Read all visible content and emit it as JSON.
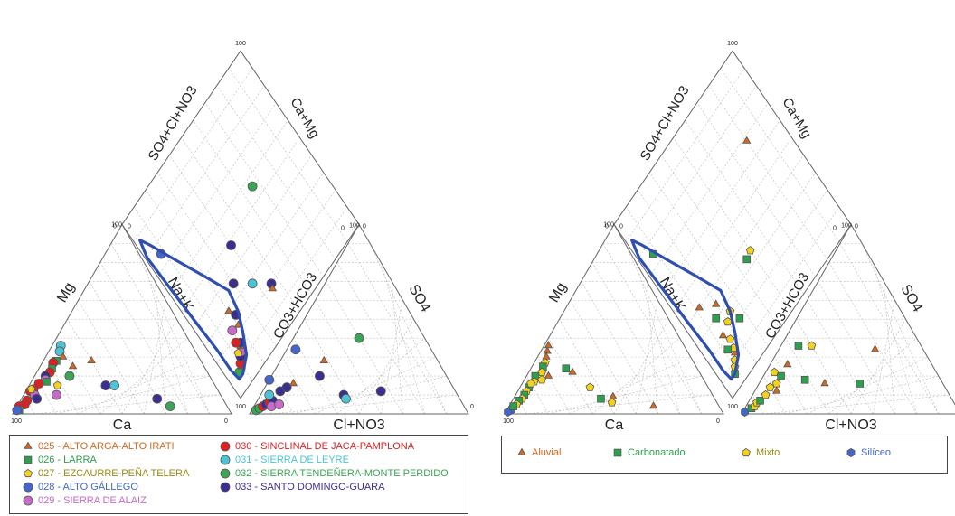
{
  "colors": {
    "025": "#d2691e",
    "026": "#2e9e4f",
    "027": "#f2d21c",
    "028": "#4466cc",
    "029": "#c86ac8",
    "030": "#e02020",
    "031": "#4dc3d6",
    "032": "#3aa655",
    "033": "#3a2f8f",
    "Aluvial": "#d2691e",
    "Carbonatado": "#2e9e4f",
    "Mixto": "#f2d21c",
    "Siliceo": "#4466cc",
    "envelope": "#2f4fb0"
  },
  "chart_data": [
    {
      "type": "scatter",
      "subtype": "piper-diagram",
      "ternary_labels": {
        "left": {
          "apex_top": "Mg",
          "right_side": "Na+K",
          "bottom": "Ca"
        },
        "right": {
          "left_side": "CO3+HCO3",
          "apex_top": "SO4",
          "bottom": "Cl+NO3"
        },
        "diamond": {
          "upper_left": "SO4+Cl+NO3",
          "upper_right": "Ca+Mg"
        }
      },
      "tick_labels": [
        "100",
        "0"
      ],
      "legend": [
        {
          "key": "025",
          "label": "025 - ALTO ARGA-ALTO IRATI",
          "marker": "triangle"
        },
        {
          "key": "026",
          "label": "026 - LARRA",
          "marker": "square"
        },
        {
          "key": "027",
          "label": "027 - EZCAURRE-PEÑA TELERA",
          "marker": "pentagon"
        },
        {
          "key": "028",
          "label": "028 - ALTO GÁLLEGO",
          "marker": "circle"
        },
        {
          "key": "029",
          "label": "029 - SIERRA DE ALAIZ",
          "marker": "circle"
        },
        {
          "key": "030",
          "label": "030 - SINCLINAL DE JACA-PAMPLONA",
          "marker": "circle"
        },
        {
          "key": "031",
          "label": "031 - SIERRA DE LEYRE",
          "marker": "circle"
        },
        {
          "key": "032",
          "label": "032 - SIERRA TENDEÑERA-MONTE PERDIDO",
          "marker": "circle"
        },
        {
          "key": "033",
          "label": "033 - SANTO DOMINGO-GUARA",
          "marker": "circle"
        }
      ],
      "cation_points": [
        {
          "s": "031",
          "ca": 60,
          "mg": 36
        },
        {
          "s": "031",
          "ca": 62,
          "mg": 33
        },
        {
          "s": "025",
          "ca": 62,
          "mg": 30
        },
        {
          "s": "026",
          "ca": 66,
          "mg": 28
        },
        {
          "s": "030",
          "ca": 68,
          "mg": 27
        },
        {
          "s": "026",
          "ca": 70,
          "mg": 24
        },
        {
          "s": "030",
          "ca": 72,
          "mg": 22
        },
        {
          "s": "033",
          "ca": 75,
          "mg": 20
        },
        {
          "s": "029",
          "ca": 76,
          "mg": 18
        },
        {
          "s": "026",
          "ca": 76,
          "mg": 17
        },
        {
          "s": "030",
          "ca": 80,
          "mg": 16
        },
        {
          "s": "030",
          "ca": 84,
          "mg": 13
        },
        {
          "s": "030",
          "ca": 86,
          "mg": 12
        },
        {
          "s": "029",
          "ca": 85,
          "mg": 10
        },
        {
          "s": "027",
          "ca": 85,
          "mg": 13
        },
        {
          "s": "030",
          "ca": 90,
          "mg": 7
        },
        {
          "s": "030",
          "ca": 92,
          "mg": 5
        },
        {
          "s": "030",
          "ca": 95,
          "mg": 4
        },
        {
          "s": "026",
          "ca": 96,
          "mg": 2
        },
        {
          "s": "028",
          "ca": 97,
          "mg": 2
        },
        {
          "s": "033",
          "ca": 85,
          "mg": 8
        },
        {
          "s": "029",
          "ca": 75,
          "mg": 10
        },
        {
          "s": "025",
          "ca": 60,
          "mg": 25
        },
        {
          "s": "025",
          "ca": 50,
          "mg": 28
        },
        {
          "s": "033",
          "ca": 50,
          "mg": 15
        },
        {
          "s": "031",
          "ca": 46,
          "mg": 15
        },
        {
          "s": "033",
          "ca": 30,
          "mg": 8
        },
        {
          "s": "032",
          "ca": 26,
          "mg": 4
        },
        {
          "s": "027",
          "ca": 72,
          "mg": 15
        },
        {
          "s": "032",
          "ca": 64,
          "mg": 20
        }
      ],
      "anion_points": [
        {
          "s": "032",
          "hco3": 96,
          "so4": 2
        },
        {
          "s": "032",
          "hco3": 94,
          "so4": 3
        },
        {
          "s": "030",
          "hco3": 92,
          "so4": 4
        },
        {
          "s": "033",
          "hco3": 90,
          "so4": 5
        },
        {
          "s": "030",
          "hco3": 88,
          "so4": 6
        },
        {
          "s": "033",
          "hco3": 86,
          "so4": 7
        },
        {
          "s": "029",
          "hco3": 88,
          "so4": 4
        },
        {
          "s": "029",
          "hco3": 84,
          "so4": 5
        },
        {
          "s": "031",
          "hco3": 86,
          "so4": 10
        },
        {
          "s": "033",
          "hco3": 80,
          "so4": 12
        },
        {
          "s": "033",
          "hco3": 76,
          "so4": 14
        },
        {
          "s": "025",
          "hco3": 72,
          "so4": 16
        },
        {
          "s": "028",
          "hco3": 62,
          "so4": 34
        },
        {
          "s": "033",
          "hco3": 58,
          "so4": 20
        },
        {
          "s": "033",
          "hco3": 52,
          "so4": 10
        },
        {
          "s": "025",
          "hco3": 52,
          "so4": 28
        },
        {
          "s": "031",
          "hco3": 52,
          "so4": 8
        },
        {
          "s": "032",
          "hco3": 30,
          "so4": 40
        },
        {
          "s": "033",
          "hco3": 34,
          "so4": 12
        },
        {
          "s": "028",
          "hco3": 82,
          "so4": 18
        }
      ],
      "diamond_points": [
        {
          "s": "032",
          "anion": 8,
          "cation": 93
        },
        {
          "s": "026",
          "anion": 9,
          "cation": 90
        },
        {
          "s": "030",
          "anion": 10,
          "cation": 90
        },
        {
          "s": "033",
          "anion": 12,
          "cation": 88
        },
        {
          "s": "029",
          "anion": 13,
          "cation": 86
        },
        {
          "s": "025",
          "anion": 15,
          "cation": 85
        },
        {
          "s": "027",
          "anion": 14,
          "cation": 88
        },
        {
          "s": "033",
          "anion": 16,
          "cation": 84
        },
        {
          "s": "030",
          "anion": 18,
          "cation": 86
        },
        {
          "s": "025",
          "anion": 22,
          "cation": 80
        },
        {
          "s": "033",
          "anion": 26,
          "cation": 78
        },
        {
          "s": "025",
          "anion": 30,
          "cation": 80
        },
        {
          "s": "029",
          "anion": 23,
          "cation": 84
        },
        {
          "s": "033",
          "anion": 36,
          "cation": 70
        },
        {
          "s": "033",
          "anion": 48,
          "cation": 60
        },
        {
          "s": "028",
          "anion": 75,
          "cation": 92
        },
        {
          "s": "032",
          "anion": 56,
          "cation": 34
        },
        {
          "s": "033",
          "anion": 20,
          "cation": 54
        },
        {
          "s": "025",
          "anion": 18,
          "cation": 55
        },
        {
          "s": "031",
          "anion": 28,
          "cation": 62
        }
      ]
    },
    {
      "type": "scatter",
      "subtype": "piper-diagram",
      "ternary_labels": {
        "left": {
          "apex_top": "Mg",
          "right_side": "Na+K",
          "bottom": "Ca"
        },
        "right": {
          "left_side": "CO3+HCO3",
          "apex_top": "SO4",
          "bottom": "Cl+NO3"
        },
        "diamond": {
          "upper_left": "SO4+Cl+NO3",
          "upper_right": "Ca+Mg"
        }
      },
      "tick_labels": [
        "100",
        "0"
      ],
      "legend": [
        {
          "key": "Aluvial",
          "label": "Aluvial",
          "marker": "triangle"
        },
        {
          "key": "Carbonatado",
          "label": "Carbonatado",
          "marker": "square"
        },
        {
          "key": "Mixto",
          "label": "Mixto",
          "marker": "pentagon"
        },
        {
          "key": "Siliceo",
          "label": "Silíceo",
          "marker": "hexagon"
        }
      ],
      "cation_points": [
        {
          "s": "Aluvial",
          "ca": 62,
          "mg": 36
        },
        {
          "s": "Aluvial",
          "ca": 64,
          "mg": 33
        },
        {
          "s": "Aluvial",
          "ca": 66,
          "mg": 30
        },
        {
          "s": "Mixto",
          "ca": 68,
          "mg": 27
        },
        {
          "s": "Carbonatado",
          "ca": 70,
          "mg": 25
        },
        {
          "s": "Mixto",
          "ca": 72,
          "mg": 22
        },
        {
          "s": "Carbonatado",
          "ca": 76,
          "mg": 20
        },
        {
          "s": "Mixto",
          "ca": 78,
          "mg": 17
        },
        {
          "s": "Carbonatado",
          "ca": 82,
          "mg": 14
        },
        {
          "s": "Mixto",
          "ca": 84,
          "mg": 12
        },
        {
          "s": "Carbonatado",
          "ca": 86,
          "mg": 10
        },
        {
          "s": "Mixto",
          "ca": 88,
          "mg": 8
        },
        {
          "s": "Carbonatado",
          "ca": 90,
          "mg": 7
        },
        {
          "s": "Mixto",
          "ca": 92,
          "mg": 5
        },
        {
          "s": "Siliceo",
          "ca": 96,
          "mg": 2
        },
        {
          "s": "Siliceo",
          "ca": 98,
          "mg": 1
        },
        {
          "s": "Aluvial",
          "ca": 70,
          "mg": 20
        },
        {
          "s": "Mixto",
          "ca": 74,
          "mg": 18
        },
        {
          "s": "Carbonatado",
          "ca": 60,
          "mg": 24
        },
        {
          "s": "Aluvial",
          "ca": 58,
          "mg": 22
        },
        {
          "s": "Mixto",
          "ca": 54,
          "mg": 14
        },
        {
          "s": "Aluvial",
          "ca": 46,
          "mg": 9
        },
        {
          "s": "Carbonatado",
          "ca": 52,
          "mg": 8
        },
        {
          "s": "Mixto",
          "ca": 48,
          "mg": 6
        },
        {
          "s": "Aluvial",
          "ca": 30,
          "mg": 4
        },
        {
          "s": "Mixto",
          "ca": 80,
          "mg": 16
        },
        {
          "s": "Carbonatado",
          "ca": 94,
          "mg": 4
        }
      ],
      "anion_points": [
        {
          "s": "Siliceo",
          "hco3": 98,
          "so4": 1
        },
        {
          "s": "Carbonatado",
          "hco3": 94,
          "so4": 3
        },
        {
          "s": "Mixto",
          "hco3": 92,
          "so4": 4
        },
        {
          "s": "Mixto",
          "hco3": 90,
          "so4": 6
        },
        {
          "s": "Carbonatado",
          "hco3": 88,
          "so4": 7
        },
        {
          "s": "Mixto",
          "hco3": 84,
          "so4": 10
        },
        {
          "s": "Mixto",
          "hco3": 80,
          "so4": 14
        },
        {
          "s": "Aluvial",
          "hco3": 78,
          "so4": 12
        },
        {
          "s": "Mixto",
          "hco3": 76,
          "so4": 16
        },
        {
          "s": "Carbonatado",
          "hco3": 72,
          "so4": 20
        },
        {
          "s": "Aluvial",
          "hco3": 66,
          "so4": 26
        },
        {
          "s": "Carbonatado",
          "hco3": 56,
          "so4": 36
        },
        {
          "s": "Mixto",
          "hco3": 50,
          "so4": 36
        },
        {
          "s": "Carbonatado",
          "hco3": 62,
          "so4": 18
        },
        {
          "s": "Aluvial",
          "hco3": 54,
          "so4": 16
        },
        {
          "s": "Carbonatado",
          "hco3": 38,
          "so4": 16
        },
        {
          "s": "Aluvial",
          "hco3": 22,
          "so4": 34
        },
        {
          "s": "Mixto",
          "hco3": 74,
          "so4": 22
        }
      ],
      "diamond_points": [
        {
          "s": "Carbonatado",
          "anion": 6,
          "cation": 92
        },
        {
          "s": "Mixto",
          "anion": 8,
          "cation": 90
        },
        {
          "s": "Mixto",
          "anion": 10,
          "cation": 88
        },
        {
          "s": "Aluvial",
          "anion": 12,
          "cation": 86
        },
        {
          "s": "Mixto",
          "anion": 14,
          "cation": 85
        },
        {
          "s": "Carbonatado",
          "anion": 16,
          "cation": 88
        },
        {
          "s": "Mixto",
          "anion": 18,
          "cation": 84
        },
        {
          "s": "Aluvial",
          "anion": 22,
          "cation": 86
        },
        {
          "s": "Carbonatado",
          "anion": 30,
          "cation": 84
        },
        {
          "s": "Aluvial",
          "anion": 34,
          "cation": 80
        },
        {
          "s": "Aluvial",
          "anion": 40,
          "cation": 88
        },
        {
          "s": "Mixto",
          "anion": 26,
          "cation": 76
        },
        {
          "s": "Carbonatado",
          "anion": 75,
          "cation": 92
        },
        {
          "s": "Aluvial",
          "anion": 68,
          "cation": 20
        },
        {
          "s": "Carbonatado",
          "anion": 34,
          "cation": 54
        },
        {
          "s": "Mixto",
          "anion": 35,
          "cation": 50
        },
        {
          "s": "Carbonatado",
          "anion": 20,
          "cation": 74
        },
        {
          "s": "Mixto",
          "anion": 24,
          "cation": 80
        }
      ]
    }
  ],
  "envelope": [
    [
      6,
      92
    ],
    [
      10,
      85
    ],
    [
      18,
      80
    ],
    [
      26,
      76
    ],
    [
      36,
      74
    ],
    [
      50,
      80
    ],
    [
      68,
      88
    ],
    [
      82,
      94
    ],
    [
      88,
      97
    ],
    [
      80,
      99
    ],
    [
      60,
      98
    ],
    [
      40,
      97
    ],
    [
      24,
      96
    ],
    [
      12,
      96
    ],
    [
      6,
      95
    ]
  ]
}
